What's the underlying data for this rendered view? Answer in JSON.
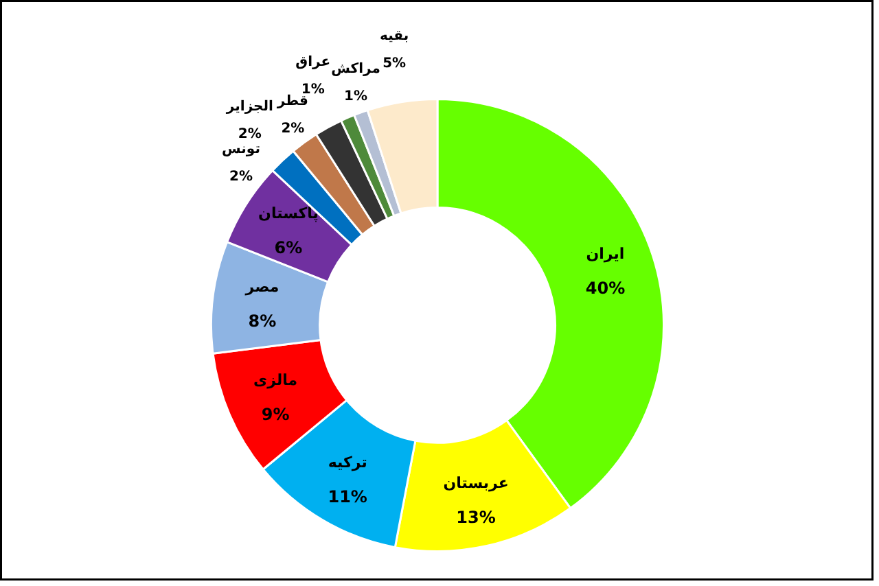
{
  "chart_data": {
    "type": "donut",
    "categories": [
      "ایران",
      "عربستان",
      "ترکیه",
      "مالزی",
      "مصر",
      "پاکستان",
      "تونس",
      "الجزایر",
      "قطر",
      "عراق",
      "مراکش",
      "بقیه"
    ],
    "values": [
      40,
      13,
      11,
      9,
      8,
      6,
      2,
      2,
      2,
      1,
      1,
      5
    ],
    "colors": [
      "#66ff00",
      "#ffff00",
      "#00b0f0",
      "#ff0000",
      "#8eb4e3",
      "#7030a0",
      "#0070c0",
      "#c0784a",
      "#333333",
      "#4e8a3a",
      "#b4bfd4",
      "#fdeacb"
    ],
    "data_labels": true,
    "value_labels": [
      "40%",
      "13%",
      "11%",
      "9%",
      "8%",
      "6%",
      "2%",
      "2%",
      "2%",
      "1%",
      "1%",
      "5%"
    ]
  }
}
